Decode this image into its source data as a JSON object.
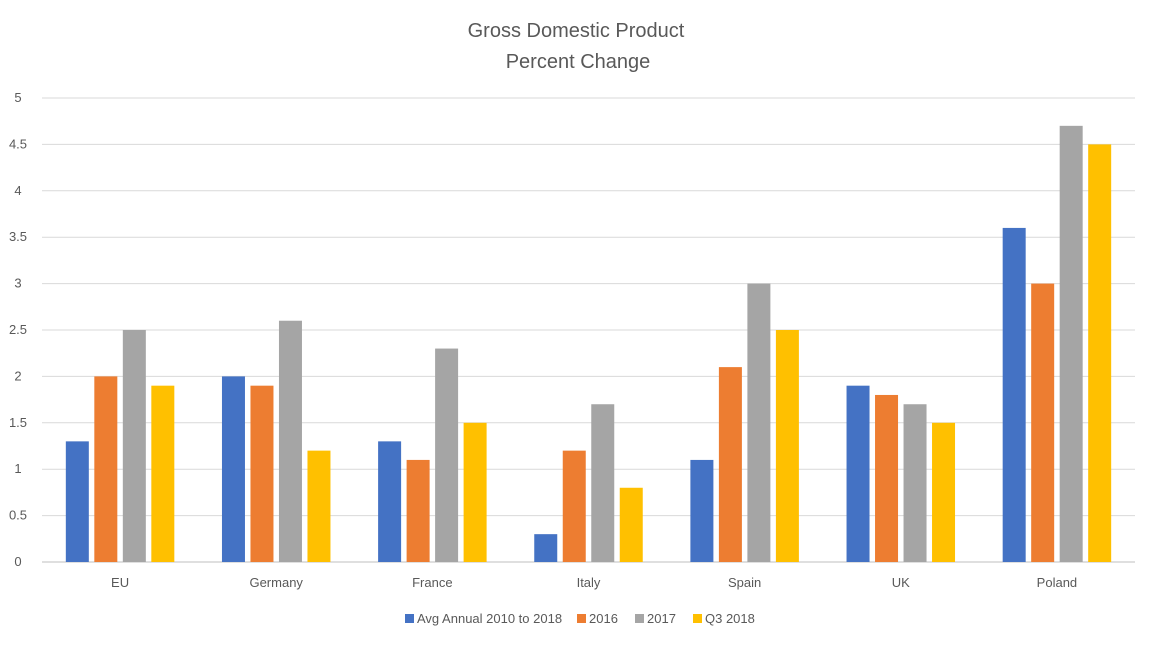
{
  "chart_data": {
    "type": "bar",
    "title": "Gross Domestic Product",
    "subtitle": "Percent Change",
    "xlabel": "",
    "ylabel": "",
    "ylim": [
      0,
      5
    ],
    "yticks": [
      "0",
      "0.5",
      "1",
      "1.5",
      "2",
      "2.5",
      "3",
      "3.5",
      "4",
      "4.5",
      "5"
    ],
    "grid": true,
    "legend_position": "bottom",
    "categories": [
      "EU",
      "Germany",
      "France",
      "Italy",
      "Spain",
      "UK",
      "Poland"
    ],
    "series": [
      {
        "name": "Avg Annual 2010 to 2018",
        "color": "#4472C4",
        "values": [
          1.3,
          2.0,
          1.3,
          0.3,
          1.1,
          1.9,
          3.6
        ]
      },
      {
        "name": "2016",
        "color": "#ED7D31",
        "values": [
          2.0,
          1.9,
          1.1,
          1.2,
          2.1,
          1.8,
          3.0
        ]
      },
      {
        "name": "2017",
        "color": "#A5A5A5",
        "values": [
          2.5,
          2.6,
          2.3,
          1.7,
          3.0,
          1.7,
          4.7
        ]
      },
      {
        "name": "Q3 2018",
        "color": "#FFC000",
        "values": [
          1.9,
          1.2,
          1.5,
          0.8,
          2.5,
          1.5,
          4.5
        ]
      }
    ]
  }
}
